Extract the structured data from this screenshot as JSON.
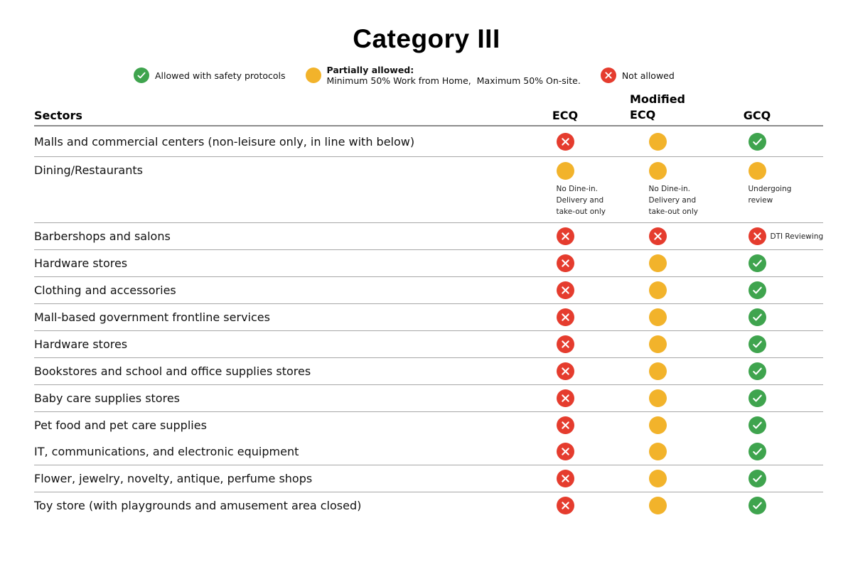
{
  "title": "Category III",
  "colors": {
    "allowed": "#3fa44e",
    "partial": "#f2b32b",
    "not_allowed": "#e53c2e"
  },
  "legend": {
    "allowed_label": "Allowed with safety protocols",
    "partial_label_bold": "Partially allowed:",
    "partial_label_detail": "Minimum 50% Work from Home,  Maximum 50% On-site.",
    "not_allowed_label": "Not allowed"
  },
  "table": {
    "headers": {
      "sectors": "Sectors",
      "ecq": "ECQ",
      "mecq_line1": "Modified",
      "mecq_line2": "ECQ",
      "gcq": "GCQ"
    },
    "rows": [
      {
        "sector": "Malls and commercial centers (non-leisure only, in line with below)",
        "ecq": "not_allowed",
        "mecq": "partial",
        "gcq": "allowed",
        "first": true
      },
      {
        "sector": "Dining/Restaurants",
        "ecq": "partial",
        "mecq": "partial",
        "gcq": "partial",
        "ecq_note": "No Dine-in. Delivery and take-out only",
        "mecq_note": "No Dine-in. Delivery and take-out only",
        "gcq_note": "Undergoing review",
        "tall": true
      },
      {
        "sector": "Barbershops and salons",
        "ecq": "not_allowed",
        "mecq": "not_allowed",
        "gcq": "not_allowed",
        "gcq_side_note": "DTI Reviewing"
      },
      {
        "sector": "Hardware stores",
        "ecq": "not_allowed",
        "mecq": "partial",
        "gcq": "allowed"
      },
      {
        "sector": "Clothing and accessories",
        "ecq": "not_allowed",
        "mecq": "partial",
        "gcq": "allowed"
      },
      {
        "sector": "Mall-based government frontline services",
        "ecq": "not_allowed",
        "mecq": "partial",
        "gcq": "allowed"
      },
      {
        "sector": "Hardware stores",
        "ecq": "not_allowed",
        "mecq": "partial",
        "gcq": "allowed"
      },
      {
        "sector": "Bookstores and school and office supplies stores",
        "ecq": "not_allowed",
        "mecq": "partial",
        "gcq": "allowed"
      },
      {
        "sector": "Baby care supplies stores",
        "ecq": "not_allowed",
        "mecq": "partial",
        "gcq": "allowed"
      },
      {
        "sector": "Pet food and pet care supplies",
        "ecq": "not_allowed",
        "mecq": "partial",
        "gcq": "allowed",
        "no_divider": true
      },
      {
        "sector": "IT, communications, and electronic equipment",
        "ecq": "not_allowed",
        "mecq": "partial",
        "gcq": "allowed"
      },
      {
        "sector": "Flower, jewelry, novelty, antique, perfume shops",
        "ecq": "not_allowed",
        "mecq": "partial",
        "gcq": "allowed"
      },
      {
        "sector": "Toy store (with playgrounds and amusement area closed)",
        "ecq": "not_allowed",
        "mecq": "partial",
        "gcq": "allowed",
        "last": true
      }
    ]
  }
}
